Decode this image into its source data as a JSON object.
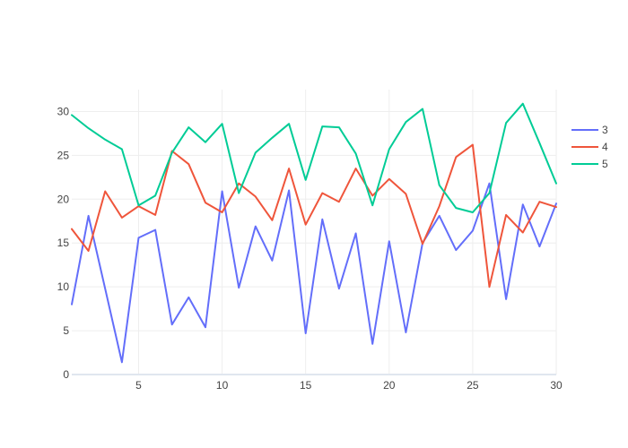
{
  "chart_data": {
    "type": "line",
    "title": "",
    "xlabel": "",
    "ylabel": "",
    "xlim": [
      1,
      30
    ],
    "ylim": [
      0,
      32.5
    ],
    "x_ticks": [
      5,
      10,
      15,
      20,
      25,
      30
    ],
    "y_ticks": [
      0,
      5,
      10,
      15,
      20,
      25,
      30
    ],
    "grid": true,
    "legend_position": "right",
    "x": [
      1,
      2,
      3,
      4,
      5,
      6,
      7,
      8,
      9,
      10,
      11,
      12,
      13,
      14,
      15,
      16,
      17,
      18,
      19,
      20,
      21,
      22,
      23,
      24,
      25,
      26,
      27,
      28,
      29,
      30
    ],
    "series": [
      {
        "name": "3",
        "color": "#636efa",
        "values": [
          8.0,
          18.1,
          9.8,
          1.4,
          15.6,
          16.5,
          5.7,
          8.8,
          5.4,
          20.9,
          9.9,
          16.9,
          13.0,
          21.0,
          4.7,
          17.7,
          9.8,
          16.1,
          3.5,
          15.2,
          4.8,
          15.0,
          18.1,
          14.2,
          16.4,
          21.8,
          8.6,
          19.4,
          14.6,
          19.5
        ]
      },
      {
        "name": "4",
        "color": "#ef553b",
        "values": [
          16.6,
          14.1,
          20.9,
          17.9,
          19.2,
          18.2,
          25.5,
          24.0,
          19.6,
          18.5,
          21.8,
          20.3,
          17.6,
          23.5,
          17.1,
          20.7,
          19.7,
          23.5,
          20.4,
          22.3,
          20.6,
          14.9,
          19.2,
          24.8,
          26.2,
          10.0,
          18.2,
          16.2,
          19.7,
          19.1
        ]
      },
      {
        "name": "5",
        "color": "#00cc96",
        "values": [
          29.6,
          28.1,
          26.8,
          25.7,
          19.3,
          20.4,
          25.3,
          28.2,
          26.5,
          28.6,
          20.7,
          25.3,
          27.0,
          28.6,
          22.2,
          28.3,
          28.2,
          25.2,
          19.3,
          25.7,
          28.8,
          30.3,
          21.6,
          19.0,
          18.5,
          20.7,
          28.7,
          30.9,
          26.4,
          21.8
        ]
      }
    ]
  }
}
